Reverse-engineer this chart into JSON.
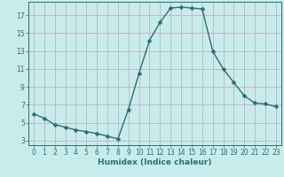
{
  "x": [
    0,
    1,
    2,
    3,
    4,
    5,
    6,
    7,
    8,
    9,
    10,
    11,
    12,
    13,
    14,
    15,
    16,
    17,
    18,
    19,
    20,
    21,
    22,
    23
  ],
  "y": [
    6.0,
    5.5,
    4.8,
    4.5,
    4.2,
    4.0,
    3.8,
    3.5,
    3.2,
    6.5,
    10.5,
    14.2,
    16.2,
    17.8,
    17.9,
    17.8,
    17.7,
    13.0,
    11.0,
    9.5,
    8.0,
    7.2,
    7.1,
    6.8
  ],
  "line_color": "#2d6e6e",
  "marker": "D",
  "marker_size": 2.5,
  "bg_color": "#c8ecec",
  "grid_color": "#c0b8c8",
  "xlabel": "Humidex (Indice chaleur)",
  "xlim": [
    -0.5,
    23.5
  ],
  "ylim": [
    2.5,
    18.5
  ],
  "yticks": [
    3,
    5,
    7,
    9,
    11,
    13,
    15,
    17
  ],
  "xticks": [
    0,
    1,
    2,
    3,
    4,
    5,
    6,
    7,
    8,
    9,
    10,
    11,
    12,
    13,
    14,
    15,
    16,
    17,
    18,
    19,
    20,
    21,
    22,
    23
  ],
  "tick_fontsize": 5.5,
  "xlabel_fontsize": 6.5
}
